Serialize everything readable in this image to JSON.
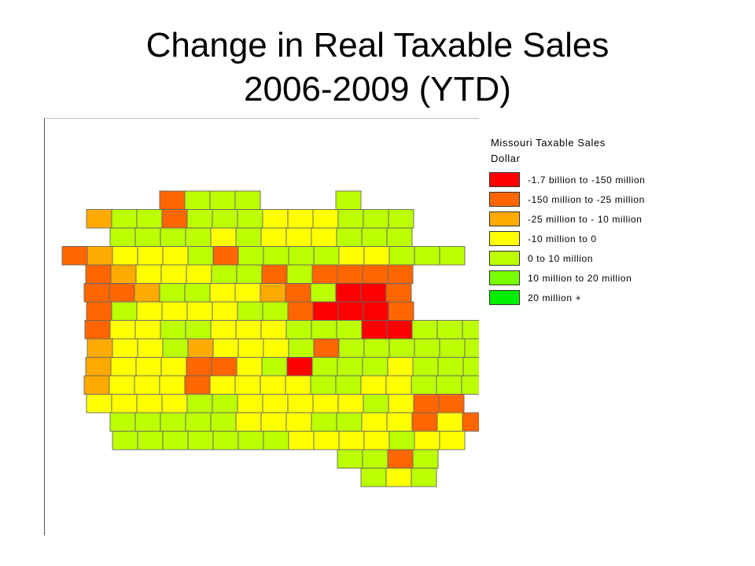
{
  "title": {
    "line1": "Change in Real Taxable Sales",
    "line2": "2006-2009 (YTD)"
  },
  "legend": {
    "title": "Missouri Taxable Sales",
    "subtitle": "Dollar",
    "items": [
      {
        "label": "-1.7 billion to -150 million",
        "color": "#ff0000"
      },
      {
        "label": "-150 million to -25 million",
        "color": "#ff6600"
      },
      {
        "label": "-25 million to - 10 million",
        "color": "#ffaa00"
      },
      {
        "label": "-10 million to 0",
        "color": "#ffff00"
      },
      {
        "label": "0 to 10 million",
        "color": "#bbff00"
      },
      {
        "label": "10 million to 20 million",
        "color": "#77ff00"
      },
      {
        "label": "20 million +",
        "color": "#00ee00"
      }
    ]
  },
  "map": {
    "region": "Missouri",
    "outline_color": "#666666",
    "county_grid": [
      "....1444...4...",
      ".2441444333444.",
      "..444434333444.",
      "1233341444433444",
      ".1233344141111..",
      ".1124433214001...",
      ".1433334410001..",
      ".1334433344400444",
      ".2334233341444444",
      ".2333113404443444",
      ".2333133334433444",
      ".333344333334311.",
      "..444443334433131",
      "..44444443333433",
      "...........4414.",
      "............434."
    ]
  }
}
